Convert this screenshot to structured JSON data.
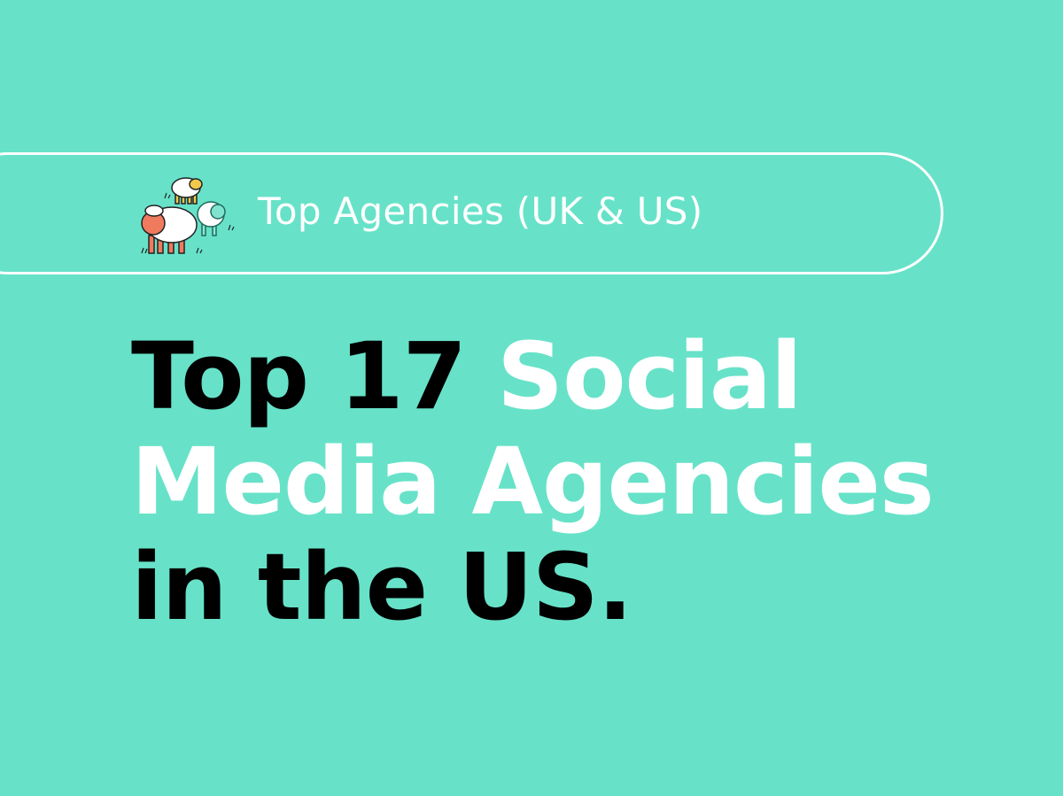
{
  "background_color": "#67e2c9",
  "badge": {
    "label": "Top Agencies (UK & US)",
    "logo_icon": "sheep-flock-icon"
  },
  "headline": {
    "part1": "Top 17 ",
    "highlight_line1": "Social",
    "highlight_line2": "Media Agencies",
    "part2": "in the US.",
    "text_color": "#000000",
    "highlight_color": "#ffffff"
  }
}
